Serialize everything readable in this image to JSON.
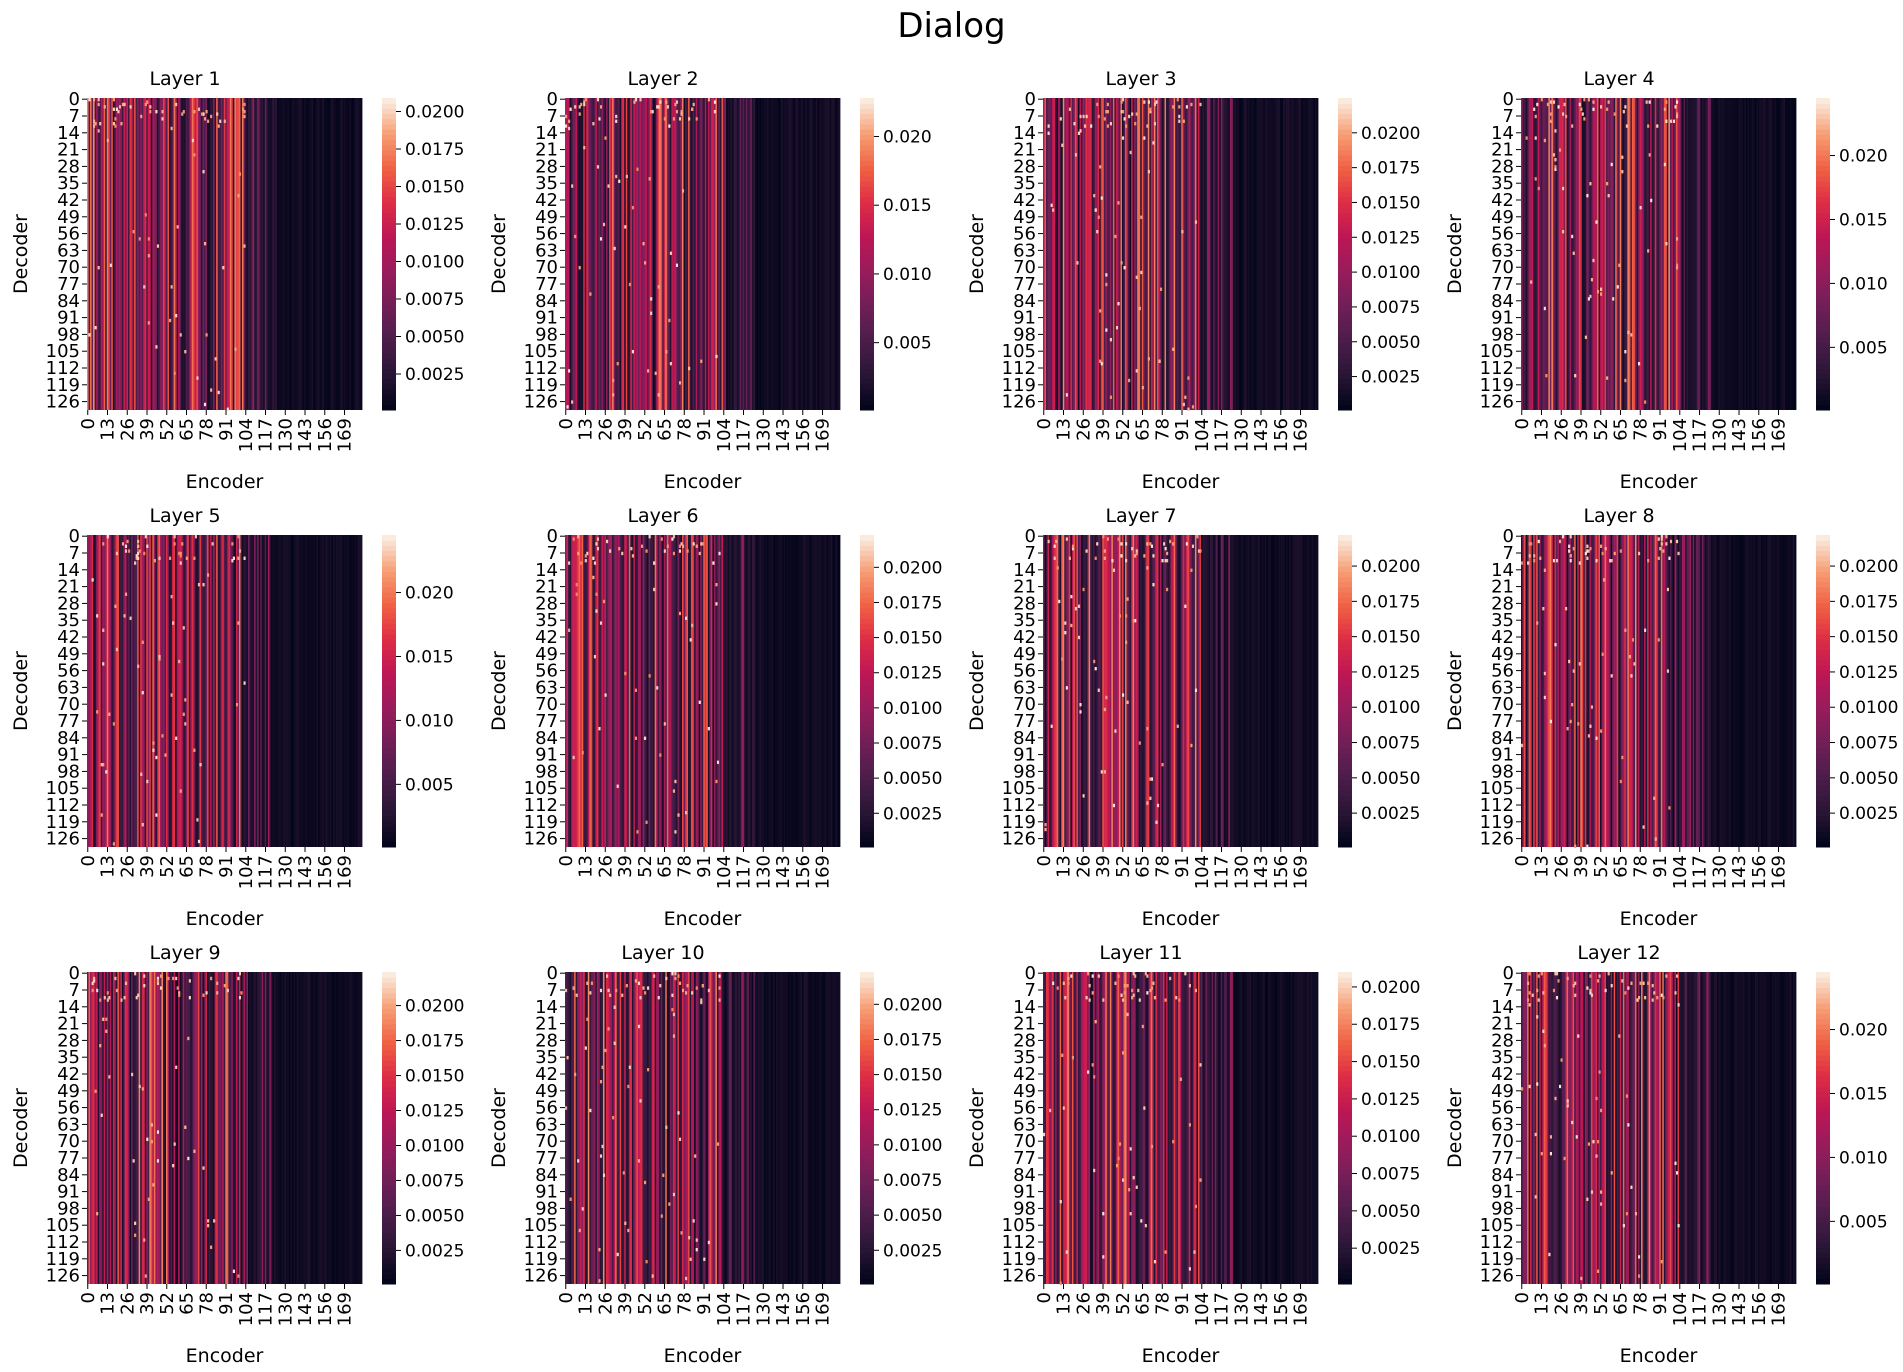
{
  "figure": {
    "title": "Dialog"
  },
  "colormap": {
    "name": "rocket",
    "stops": [
      "#03051a",
      "#2a1636",
      "#4c1d4b",
      "#711f57",
      "#971c5b",
      "#bd1655",
      "#dd2c45",
      "#f06043",
      "#f69c73",
      "#faebdd"
    ]
  },
  "chart_data": [
    {
      "type": "heatmap",
      "title": "Layer 1",
      "xlabel": "Encoder",
      "ylabel": "Decoder",
      "x_ticks": [
        "0",
        "13",
        "26",
        "39",
        "52",
        "65",
        "78",
        "91",
        "104",
        "117",
        "130",
        "143",
        "156",
        "169"
      ],
      "y_ticks": [
        "0",
        "7",
        "14",
        "21",
        "28",
        "35",
        "42",
        "49",
        "56",
        "63",
        "70",
        "77",
        "84",
        "91",
        "98",
        "105",
        "112",
        "119",
        "126"
      ],
      "colorbar_ticks": [
        "0.0025",
        "0.0050",
        "0.0075",
        "0.0100",
        "0.0125",
        "0.0150",
        "0.0175",
        "0.0200"
      ],
      "colorbar_range": [
        0.0001,
        0.0209
      ],
      "n_encoder": 181,
      "n_decoder": 130
    },
    {
      "type": "heatmap",
      "title": "Layer 2",
      "xlabel": "Encoder",
      "ylabel": "Decoder",
      "x_ticks": [
        "0",
        "13",
        "26",
        "39",
        "52",
        "65",
        "78",
        "91",
        "104",
        "117",
        "130",
        "143",
        "156",
        "169"
      ],
      "y_ticks": [
        "0",
        "7",
        "14",
        "21",
        "28",
        "35",
        "42",
        "49",
        "56",
        "63",
        "70",
        "77",
        "84",
        "91",
        "98",
        "105",
        "112",
        "119",
        "126"
      ],
      "colorbar_ticks": [
        "0.005",
        "0.010",
        "0.015",
        "0.020"
      ],
      "colorbar_range": [
        0.0001,
        0.0228
      ],
      "n_encoder": 181,
      "n_decoder": 130
    },
    {
      "type": "heatmap",
      "title": "Layer 3",
      "xlabel": "Encoder",
      "ylabel": "Decoder",
      "x_ticks": [
        "0",
        "13",
        "26",
        "39",
        "52",
        "65",
        "78",
        "91",
        "104",
        "117",
        "130",
        "143",
        "156",
        "169"
      ],
      "y_ticks": [
        "0",
        "7",
        "14",
        "21",
        "28",
        "35",
        "42",
        "49",
        "56",
        "63",
        "70",
        "77",
        "84",
        "91",
        "98",
        "105",
        "112",
        "119",
        "126"
      ],
      "colorbar_ticks": [
        "0.0025",
        "0.0050",
        "0.0075",
        "0.0100",
        "0.0125",
        "0.0150",
        "0.0175",
        "0.0200"
      ],
      "colorbar_range": [
        0.0001,
        0.0225
      ],
      "n_encoder": 181,
      "n_decoder": 130
    },
    {
      "type": "heatmap",
      "title": "Layer 4",
      "xlabel": "Encoder",
      "ylabel": "Decoder",
      "x_ticks": [
        "0",
        "13",
        "26",
        "39",
        "52",
        "65",
        "78",
        "91",
        "104",
        "117",
        "130",
        "143",
        "156",
        "169"
      ],
      "y_ticks": [
        "0",
        "7",
        "14",
        "21",
        "28",
        "35",
        "42",
        "49",
        "56",
        "63",
        "70",
        "77",
        "84",
        "91",
        "98",
        "105",
        "112",
        "119",
        "126"
      ],
      "colorbar_ticks": [
        "0.005",
        "0.010",
        "0.015",
        "0.020"
      ],
      "colorbar_range": [
        0.0001,
        0.0245
      ],
      "n_encoder": 181,
      "n_decoder": 130
    },
    {
      "type": "heatmap",
      "title": "Layer 5",
      "xlabel": "Encoder",
      "ylabel": "Decoder",
      "x_ticks": [
        "0",
        "13",
        "26",
        "39",
        "52",
        "65",
        "78",
        "91",
        "104",
        "117",
        "130",
        "143",
        "156",
        "169"
      ],
      "y_ticks": [
        "0",
        "7",
        "14",
        "21",
        "28",
        "35",
        "42",
        "49",
        "56",
        "63",
        "70",
        "77",
        "84",
        "91",
        "98",
        "105",
        "112",
        "119",
        "126"
      ],
      "colorbar_ticks": [
        "0.005",
        "0.010",
        "0.015",
        "0.020"
      ],
      "colorbar_range": [
        0.0001,
        0.0245
      ],
      "n_encoder": 181,
      "n_decoder": 130
    },
    {
      "type": "heatmap",
      "title": "Layer 6",
      "xlabel": "Encoder",
      "ylabel": "Decoder",
      "x_ticks": [
        "0",
        "13",
        "26",
        "39",
        "52",
        "65",
        "78",
        "91",
        "104",
        "117",
        "130",
        "143",
        "156",
        "169"
      ],
      "y_ticks": [
        "0",
        "7",
        "14",
        "21",
        "28",
        "35",
        "42",
        "49",
        "56",
        "63",
        "70",
        "77",
        "84",
        "91",
        "98",
        "105",
        "112",
        "119",
        "126"
      ],
      "colorbar_ticks": [
        "0.0025",
        "0.0050",
        "0.0075",
        "0.0100",
        "0.0125",
        "0.0150",
        "0.0175",
        "0.0200"
      ],
      "colorbar_range": [
        0.0001,
        0.0223
      ],
      "n_encoder": 181,
      "n_decoder": 130
    },
    {
      "type": "heatmap",
      "title": "Layer 7",
      "xlabel": "Encoder",
      "ylabel": "Decoder",
      "x_ticks": [
        "0",
        "13",
        "26",
        "39",
        "52",
        "65",
        "78",
        "91",
        "104",
        "117",
        "130",
        "143",
        "156",
        "169"
      ],
      "y_ticks": [
        "0",
        "7",
        "14",
        "21",
        "28",
        "35",
        "42",
        "49",
        "56",
        "63",
        "70",
        "77",
        "84",
        "91",
        "98",
        "105",
        "112",
        "119",
        "126"
      ],
      "colorbar_ticks": [
        "0.0025",
        "0.0050",
        "0.0075",
        "0.0100",
        "0.0125",
        "0.0150",
        "0.0175",
        "0.0200"
      ],
      "colorbar_range": [
        0.0001,
        0.0222
      ],
      "n_encoder": 181,
      "n_decoder": 130
    },
    {
      "type": "heatmap",
      "title": "Layer 8",
      "xlabel": "Encoder",
      "ylabel": "Decoder",
      "x_ticks": [
        "0",
        "13",
        "26",
        "39",
        "52",
        "65",
        "78",
        "91",
        "104",
        "117",
        "130",
        "143",
        "156",
        "169"
      ],
      "y_ticks": [
        "0",
        "7",
        "14",
        "21",
        "28",
        "35",
        "42",
        "49",
        "56",
        "63",
        "70",
        "77",
        "84",
        "91",
        "98",
        "105",
        "112",
        "119",
        "126"
      ],
      "colorbar_ticks": [
        "0.0025",
        "0.0050",
        "0.0075",
        "0.0100",
        "0.0125",
        "0.0150",
        "0.0175",
        "0.0200"
      ],
      "colorbar_range": [
        0.0001,
        0.0222
      ],
      "n_encoder": 181,
      "n_decoder": 130
    },
    {
      "type": "heatmap",
      "title": "Layer 9",
      "xlabel": "Encoder",
      "ylabel": "Decoder",
      "x_ticks": [
        "0",
        "13",
        "26",
        "39",
        "52",
        "65",
        "78",
        "91",
        "104",
        "117",
        "130",
        "143",
        "156",
        "169"
      ],
      "y_ticks": [
        "0",
        "7",
        "14",
        "21",
        "28",
        "35",
        "42",
        "49",
        "56",
        "63",
        "70",
        "77",
        "84",
        "91",
        "98",
        "105",
        "112",
        "119",
        "126"
      ],
      "colorbar_ticks": [
        "0.0025",
        "0.0050",
        "0.0075",
        "0.0100",
        "0.0125",
        "0.0150",
        "0.0175",
        "0.0200"
      ],
      "colorbar_range": [
        0.0001,
        0.0224
      ],
      "n_encoder": 181,
      "n_decoder": 130
    },
    {
      "type": "heatmap",
      "title": "Layer 10",
      "xlabel": "Encoder",
      "ylabel": "Decoder",
      "x_ticks": [
        "0",
        "13",
        "26",
        "39",
        "52",
        "65",
        "78",
        "91",
        "104",
        "117",
        "130",
        "143",
        "156",
        "169"
      ],
      "y_ticks": [
        "0",
        "7",
        "14",
        "21",
        "28",
        "35",
        "42",
        "49",
        "56",
        "63",
        "70",
        "77",
        "84",
        "91",
        "98",
        "105",
        "112",
        "119",
        "126"
      ],
      "colorbar_ticks": [
        "0.0025",
        "0.0050",
        "0.0075",
        "0.0100",
        "0.0125",
        "0.0150",
        "0.0175",
        "0.0200"
      ],
      "colorbar_range": [
        0.0001,
        0.0223
      ],
      "n_encoder": 181,
      "n_decoder": 130
    },
    {
      "type": "heatmap",
      "title": "Layer 11",
      "xlabel": "Encoder",
      "ylabel": "Decoder",
      "x_ticks": [
        "0",
        "13",
        "26",
        "39",
        "52",
        "65",
        "78",
        "91",
        "104",
        "117",
        "130",
        "143",
        "156",
        "169"
      ],
      "y_ticks": [
        "0",
        "7",
        "14",
        "21",
        "28",
        "35",
        "42",
        "49",
        "56",
        "63",
        "70",
        "77",
        "84",
        "91",
        "98",
        "105",
        "112",
        "119",
        "126"
      ],
      "colorbar_ticks": [
        "0.0025",
        "0.0050",
        "0.0075",
        "0.0100",
        "0.0125",
        "0.0150",
        "0.0175",
        "0.0200"
      ],
      "colorbar_range": [
        0.0001,
        0.021
      ],
      "n_encoder": 181,
      "n_decoder": 130
    },
    {
      "type": "heatmap",
      "title": "Layer 12",
      "xlabel": "Encoder",
      "ylabel": "Decoder",
      "x_ticks": [
        "0",
        "13",
        "26",
        "39",
        "52",
        "65",
        "78",
        "91",
        "104",
        "117",
        "130",
        "143",
        "156",
        "169"
      ],
      "y_ticks": [
        "0",
        "7",
        "14",
        "21",
        "28",
        "35",
        "42",
        "49",
        "56",
        "63",
        "70",
        "77",
        "84",
        "91",
        "98",
        "105",
        "112",
        "119",
        "126"
      ],
      "colorbar_ticks": [
        "0.005",
        "0.010",
        "0.015",
        "0.020"
      ],
      "colorbar_range": [
        0.0001,
        0.0245
      ],
      "n_encoder": 181,
      "n_decoder": 130
    }
  ]
}
